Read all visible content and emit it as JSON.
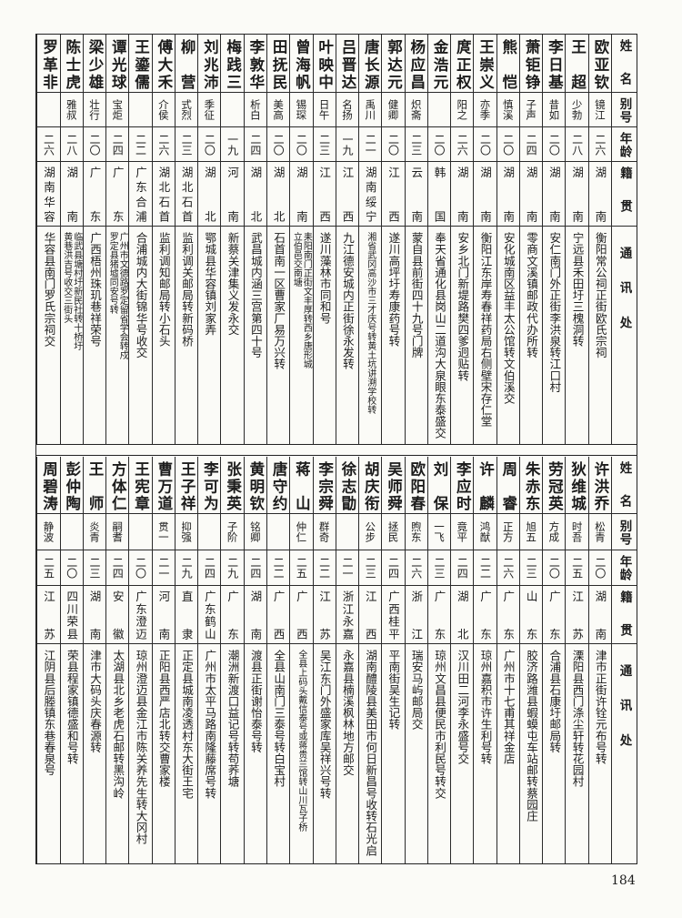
{
  "header": {
    "name": "姓名",
    "alias": "别号",
    "age": "年龄",
    "origin": "籍贯",
    "address": "通讯处"
  },
  "tables": [
    {
      "rows": [
        {
          "name": "欧亚钦",
          "alias": "镜江",
          "age": "二六",
          "origin": "湖南",
          "address": "衡阳常公祠正街欧氏宗祠"
        },
        {
          "name": "王超",
          "alias": "少勃",
          "age": "二八",
          "origin": "湖南",
          "address": "宁远县禾田圩三槐洞转"
        },
        {
          "name": "李日基",
          "alias": "昔如",
          "age": "二〇",
          "origin": "湖南",
          "address": "安仁南门外正街李洪泉转江口村"
        },
        {
          "name": "萧钜铮",
          "alias": "子声",
          "age": "二四",
          "origin": "湖南",
          "address": "零商文溪镇邮政代办所转"
        },
        {
          "name": "熊恺",
          "alias": "慎溪",
          "age": "二〇",
          "origin": "湖南",
          "address": "安化城南区益丰太公馆转文伯溪交"
        },
        {
          "name": "王崇义",
          "alias": "亦季",
          "age": "二〇",
          "origin": "湖南",
          "address": "衡阳江东岸寿春祥药局右侧壁宋存仁堂"
        },
        {
          "name": "庹正权",
          "alias": "阳之",
          "age": "二六",
          "origin": "湖南",
          "address": "安乡北门新堤路樊四爹迥贴转"
        },
        {
          "name": "金浩元",
          "alias": "",
          "age": "二〇",
          "origin": "韩国",
          "address": "奉天省通化县岗山二道沟大泉眼东泰盛交"
        },
        {
          "name": "杨应昌",
          "alias": "炽斋",
          "age": "二三",
          "origin": "云南",
          "address": "蒙自县前街四十九号门牌"
        },
        {
          "name": "郭达元",
          "alias": "健卿",
          "age": "二〇",
          "origin": "江西",
          "address": "遂川高坪圩寿康药号转"
        },
        {
          "name": "唐长源",
          "alias": "禹川",
          "age": "二一",
          "origin": "湖南绥宁",
          "address": "湘省武冈高沙市三才庆号转黄土坑讲溯学校转"
        },
        {
          "name": "吕晋达",
          "alias": "名扬",
          "age": "一九",
          "origin": "江西",
          "address": "九江德安城内正街徐永发转"
        },
        {
          "name": "叶映中",
          "alias": "日午",
          "age": "二三",
          "origin": "江西",
          "address": "遂川藻林市同和号"
        },
        {
          "name": "曾海帆",
          "alias": "锡琛",
          "age": "二〇",
          "origin": "湖南",
          "address": "耒阳南门正街文丰厚转西乡唐形城\n立伯邑交南塘"
        },
        {
          "name": "田抚民",
          "alias": "美高",
          "age": "二〇",
          "origin": "湖北",
          "address": "石首南一区曹家厂易万兴转"
        },
        {
          "name": "李敦华",
          "alias": "析白",
          "age": "二四",
          "origin": "湖北",
          "address": "武昌城内涵三宫第四十号"
        },
        {
          "name": "梅践三",
          "alias": "",
          "age": "一九",
          "origin": "河南",
          "address": "新蔡关津集义发永交"
        },
        {
          "name": "刘兆沛",
          "alias": "季征",
          "age": "二〇",
          "origin": "湖北",
          "address": "鄂城县华容镇刘家弄"
        },
        {
          "name": "柳营",
          "alias": "式烈",
          "age": "二三",
          "origin": "湖北石首",
          "address": "监利调关邮局转新码桥"
        },
        {
          "name": "傅大禾",
          "alias": "介侯",
          "age": "二六",
          "origin": "湖北石首",
          "address": "监利调知邮局转小石头"
        },
        {
          "name": "王鎏儒",
          "alias": "",
          "age": "二二",
          "origin": "广东合浦",
          "address": "合浦城内大街锦华号收交"
        },
        {
          "name": "谭光球",
          "alias": "宝炬",
          "age": "二四",
          "origin": "广东",
          "address": "广州市文德路罗定留省学会转戍\n罗定县猪墟同安号转"
        },
        {
          "name": "梁少雄",
          "alias": "壮行",
          "age": "二〇",
          "origin": "广东",
          "address": "广西梧州珠玑巷祥荣号"
        },
        {
          "name": "陈士虎",
          "alias": "雅叔",
          "age": "二八",
          "origin": "湖南",
          "address": "临武县塘村圩新民社转十桥圩\n黄巷洪吉号收交三街头"
        },
        {
          "name": "罗革非",
          "alias": "",
          "age": "二六",
          "origin": "湖南华容",
          "address": "华容县南门罗氏宗祠交"
        }
      ]
    },
    {
      "rows": [
        {
          "name": "许洪乔",
          "alias": "松青",
          "age": "二〇",
          "origin": "湖南",
          "address": "津市正街许铨元布号转"
        },
        {
          "name": "狄维城",
          "alias": "时吾",
          "age": "二五",
          "origin": "江苏",
          "address": "溧阳县西门涤尘轩转花园村"
        },
        {
          "name": "劳冠英",
          "alias": "方成",
          "age": "二〇",
          "origin": "广东",
          "address": "合浦县石康圩邮局转"
        },
        {
          "name": "朱赤东",
          "alias": "旭五",
          "age": "二三",
          "origin": "山东",
          "address": "胶济路潍县蝦蟆屯车站邮转蔡园庄"
        },
        {
          "name": "周睿",
          "alias": "正方",
          "age": "二六",
          "origin": "广东",
          "address": "广州市十七甫其祥金店"
        },
        {
          "name": "许麟",
          "alias": "鸿猷",
          "age": "二二",
          "origin": "广东",
          "address": "琼州嘉积市许生利号转"
        },
        {
          "name": "李应时",
          "alias": "竟平",
          "age": "二四",
          "origin": "湖北",
          "address": "汉川田二河李永盛号交"
        },
        {
          "name": "刘保",
          "alias": "一飞",
          "age": "二三",
          "origin": "广东",
          "address": "琼州文昌县便民市利民号转交"
        },
        {
          "name": "欧阳春",
          "alias": "煦东",
          "age": "二六",
          "origin": "浙江",
          "address": "瑞安马屿邮局交"
        },
        {
          "name": "吴师舜",
          "alias": "拯民",
          "age": "二四",
          "origin": "广西桂平",
          "address": "平南街吴生记转"
        },
        {
          "name": "胡庆衔",
          "alias": "公步",
          "age": "二三",
          "origin": "江西",
          "address": "湖南醴陵县美田市何日新昌号收转石光启"
        },
        {
          "name": "徐志勖",
          "alias": "",
          "age": "二一",
          "origin": "浙江永嘉",
          "address": "永嘉县楠溪枫林地方邮交"
        },
        {
          "name": "李宗舜",
          "alias": "群奇",
          "age": "二二",
          "origin": "江苏",
          "address": "吴江东门外盛家库吴祥兴号转"
        },
        {
          "name": "蒋山",
          "alias": "仲仁",
          "age": "二五",
          "origin": "广西",
          "address": "全县上码头戴信泰号或蒋贵兰馆转山川瓦子桥"
        },
        {
          "name": "唐守约",
          "alias": "",
          "age": "二二",
          "origin": "广西",
          "address": "全县山南门三泰号转白宝村"
        },
        {
          "name": "黄明钦",
          "alias": "铭卿",
          "age": "二四",
          "origin": "湖南",
          "address": "渡县正街谢怡泰号转"
        },
        {
          "name": "张秉英",
          "alias": "子阶",
          "age": "二九",
          "origin": "广东",
          "address": "潮洲新渡口益记号转苟荞塘"
        },
        {
          "name": "李可为",
          "alias": "",
          "age": "二四",
          "origin": "广东鹤山",
          "address": "广州市太平马路南隆藤席号转"
        },
        {
          "name": "王子祥",
          "alias": "抑强",
          "age": "二九",
          "origin": "直隶",
          "address": "正定县城南凌透村东大街王宅"
        },
        {
          "name": "曹万道",
          "alias": "贯一",
          "age": "二一",
          "origin": "河南",
          "address": "正阳县西严店北转交曹家楼"
        },
        {
          "name": "王宪章",
          "alias": "",
          "age": "二〇",
          "origin": "广东澄迈",
          "address": "琼州澄迈县金江市陈关养先生转大冈村"
        },
        {
          "name": "方体仁",
          "alias": "嗣耆",
          "age": "二四",
          "origin": "安徽",
          "address": "太湖县北乡老虎石邮转黑沟岭"
        },
        {
          "name": "王师",
          "alias": "炎青",
          "age": "二三",
          "origin": "湖南",
          "address": "津市大码头庆春源转"
        },
        {
          "name": "彭仲陶",
          "alias": "",
          "age": "二〇",
          "origin": "四川荣县",
          "address": "荣县程家镇德盛和号转"
        },
        {
          "name": "周碧涛",
          "alias": "静波",
          "age": "二五",
          "origin": "江苏",
          "address": "江阴县后塍镇东巷春泉号"
        }
      ]
    }
  ],
  "page_number": "184"
}
